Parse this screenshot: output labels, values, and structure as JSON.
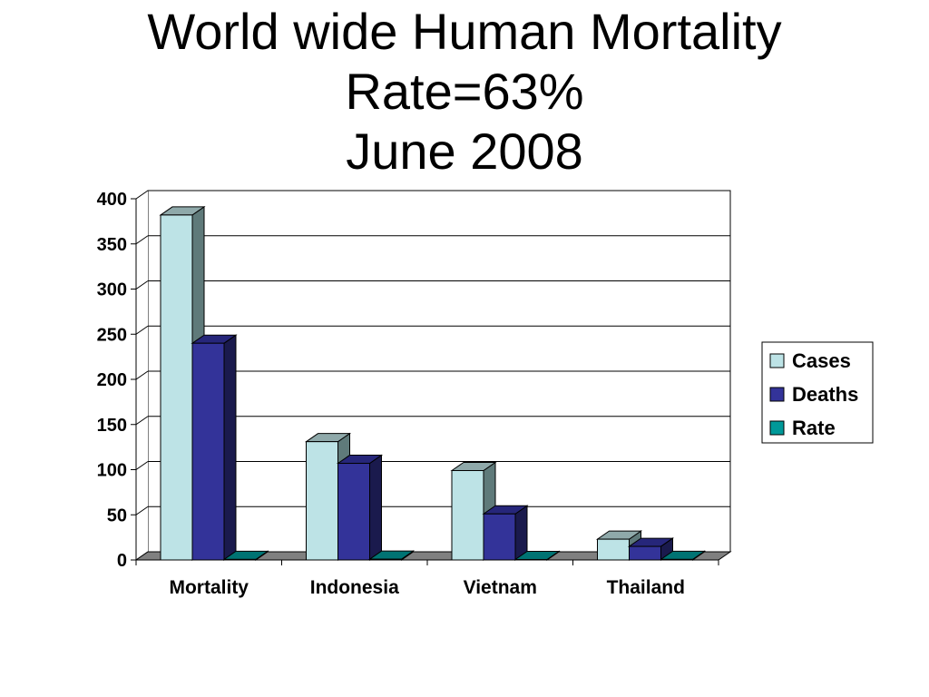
{
  "chart_data": {
    "type": "bar",
    "title": [
      "World wide Human Mortality",
      "Rate=63%",
      "June 2008"
    ],
    "xlabel": "",
    "ylabel": "",
    "categories": [
      "Mortality",
      "Indonesia",
      "Vietnam",
      "Thailand"
    ],
    "series": [
      {
        "name": "Cases",
        "values": [
          382,
          131,
          99,
          23
        ],
        "color": "#bde3e6",
        "side_color": "#5f7a7a",
        "top_color": "#8fa9aa"
      },
      {
        "name": "Deaths",
        "values": [
          240,
          107,
          51,
          15
        ],
        "color": "#333399",
        "side_color": "#1a1a4d",
        "top_color": "#26267a"
      },
      {
        "name": "Rate",
        "values": [
          0.63,
          0.82,
          0.52,
          0.65
        ],
        "color": "#009999",
        "side_color": "#004d4d",
        "top_color": "#007373"
      }
    ],
    "ylim": [
      0,
      400
    ],
    "yticks": [
      0,
      50,
      100,
      150,
      200,
      250,
      300,
      350,
      400
    ],
    "grid": true,
    "three_d": true,
    "legend_position": "right"
  }
}
